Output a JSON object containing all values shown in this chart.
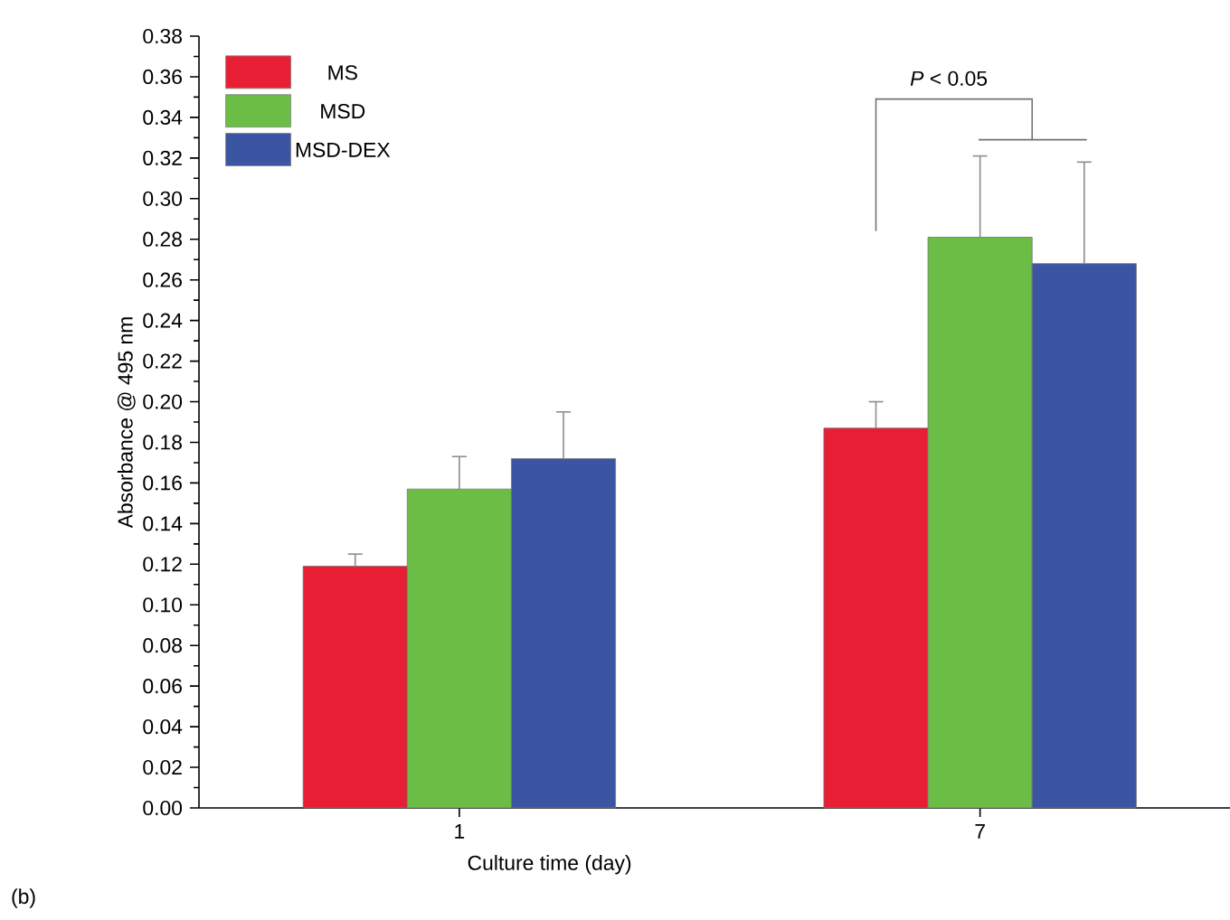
{
  "chart_data": {
    "type": "bar",
    "xlabel": "Culture time (day)",
    "ylabel": "Absorbance @ 495 nm",
    "categories": [
      "1",
      "7"
    ],
    "series": [
      {
        "name": "MS",
        "color": "#e81e35",
        "values": [
          0.119,
          0.187
        ],
        "errors": [
          [
            0.119,
            0.125
          ],
          [
            0.187,
            0.2
          ]
        ]
      },
      {
        "name": "MSD",
        "color": "#6cbd45",
        "values": [
          0.157,
          0.281
        ],
        "errors": [
          [
            0.157,
            0.173
          ],
          [
            0.281,
            0.321
          ]
        ]
      },
      {
        "name": "MSD-DEX",
        "color": "#3b55a3",
        "values": [
          0.172,
          0.268
        ],
        "errors": [
          [
            0.172,
            0.195
          ],
          [
            0.268,
            0.318
          ]
        ]
      }
    ],
    "ylim": [
      0,
      0.38
    ],
    "yticks": [
      {
        "value": 0,
        "label": "0.00"
      },
      {
        "value": 0.02,
        "label": "0.02"
      },
      {
        "value": 0.04,
        "label": "0.04"
      },
      {
        "value": 0.06,
        "label": "0.06"
      },
      {
        "value": 0.08,
        "label": "0.08"
      },
      {
        "value": 0.1,
        "label": "0.10"
      },
      {
        "value": 0.12,
        "label": "0.12"
      },
      {
        "value": 0.14,
        "label": "0.14"
      },
      {
        "value": 0.16,
        "label": "0.16"
      },
      {
        "value": 0.18,
        "label": "0.18"
      },
      {
        "value": 0.2,
        "label": "0.20"
      },
      {
        "value": 0.22,
        "label": "0.22"
      },
      {
        "value": 0.24,
        "label": "0.24"
      },
      {
        "value": 0.26,
        "label": "0.26"
      },
      {
        "value": 0.28,
        "label": "0.28"
      },
      {
        "value": 0.3,
        "label": "0.30"
      },
      {
        "value": 0.32,
        "label": "0.32"
      },
      {
        "value": 0.34,
        "label": "0.34"
      },
      {
        "value": 0.36,
        "label": "0.36"
      },
      {
        "value": 0.38,
        "label": "0.38"
      }
    ],
    "grid": false,
    "legend": "top left",
    "annotations": [
      "*P* < 0.05",
      "(b)"
    ]
  }
}
